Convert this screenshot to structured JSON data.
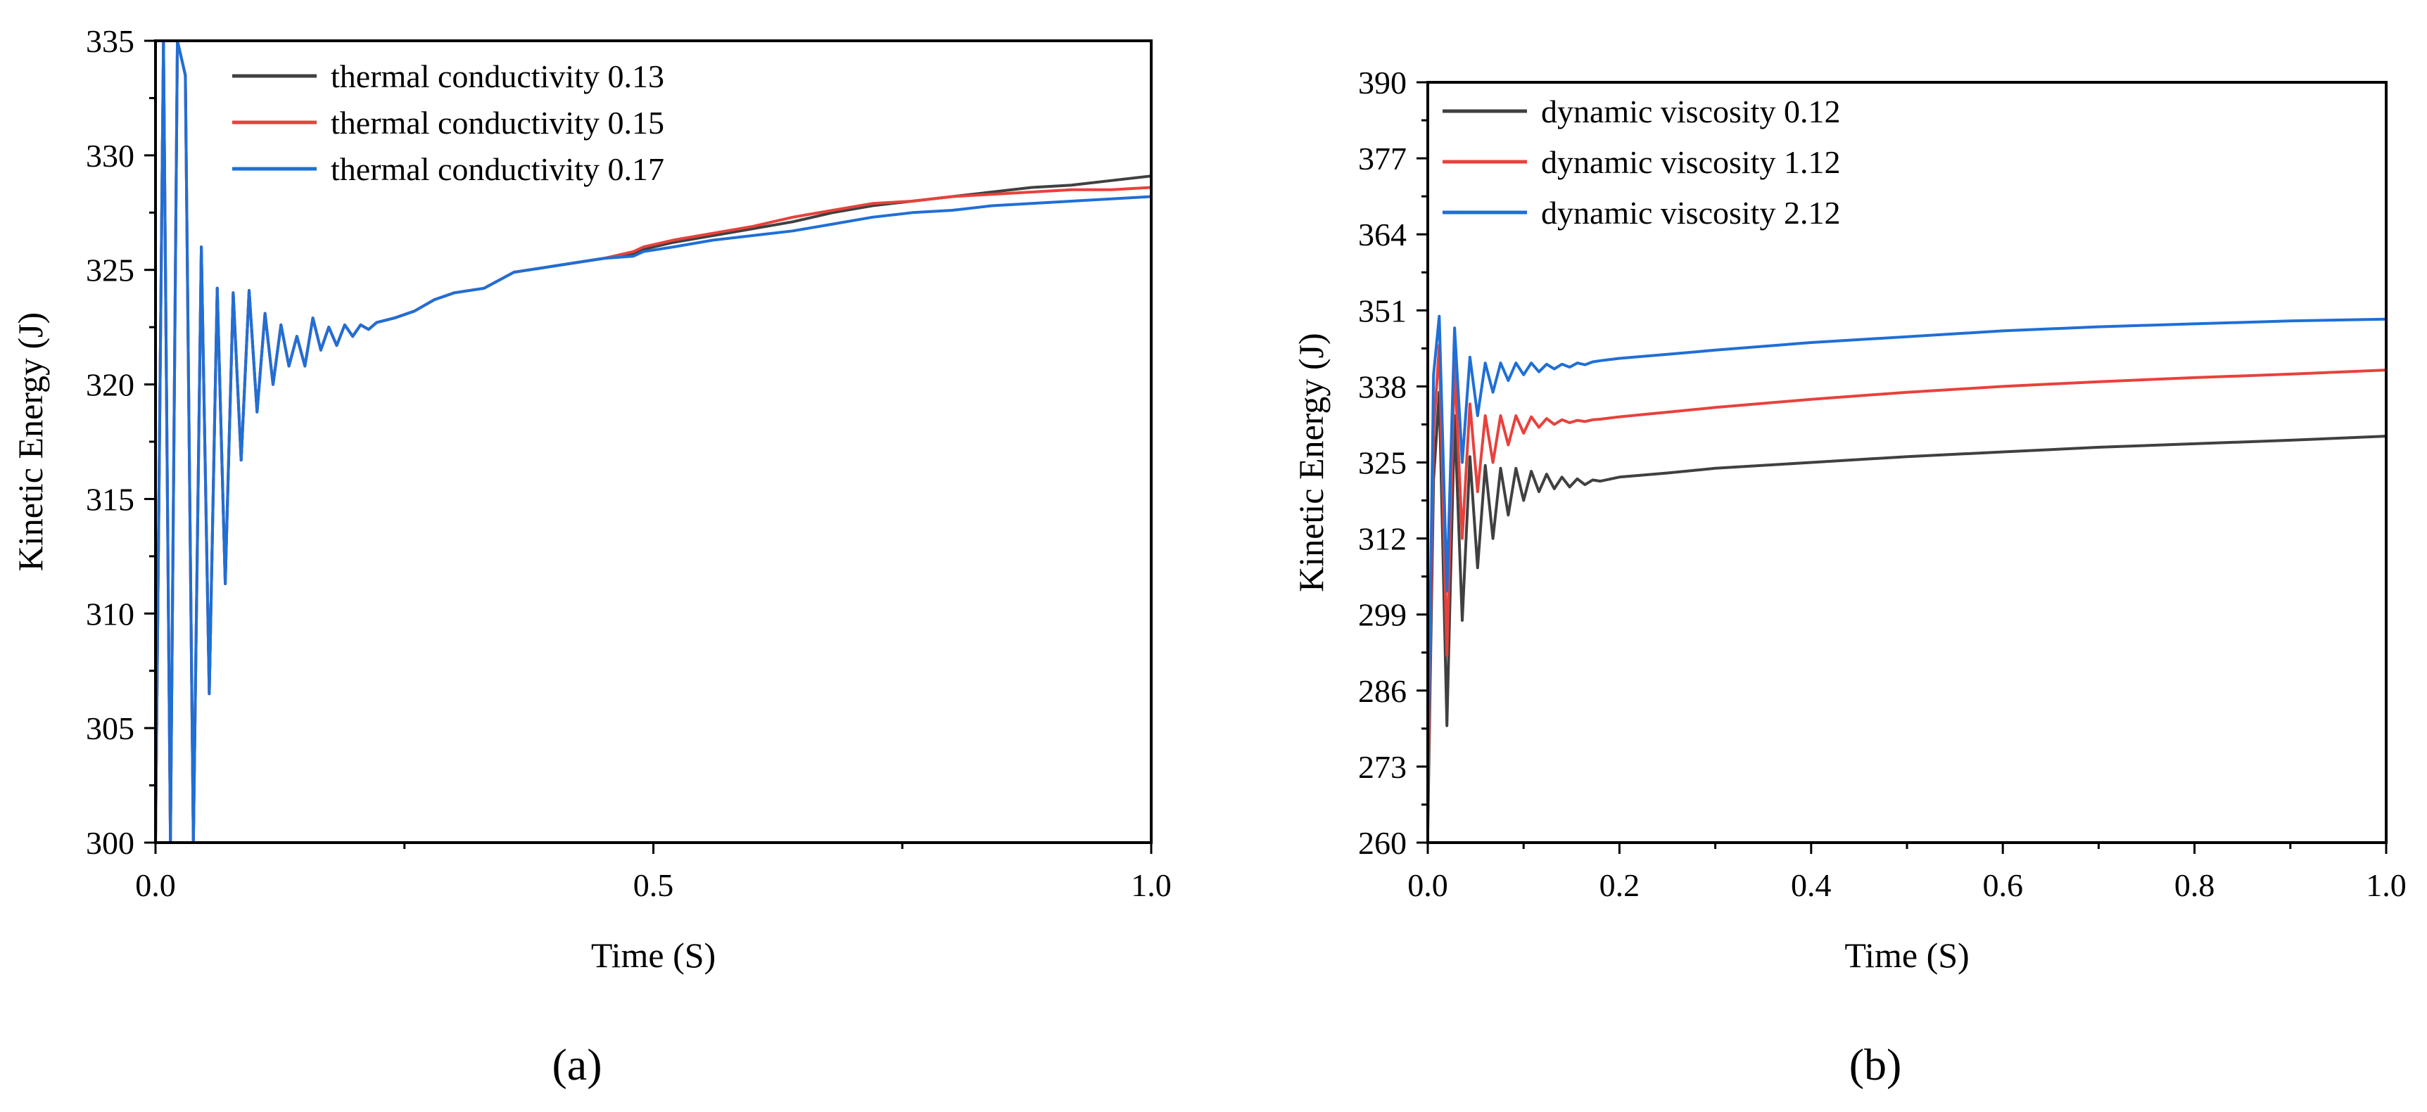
{
  "chart_data": [
    {
      "type": "line",
      "panel_label": "(a)",
      "xlabel": "Time (S)",
      "ylabel": "Kinetic Energy (J)",
      "xlim": [
        0,
        1.0
      ],
      "ylim": [
        300,
        335
      ],
      "xticks": [
        0.0,
        0.5,
        1.0
      ],
      "xtick_labels": [
        "0.0",
        "0.5",
        "1.0"
      ],
      "yticks": [
        300,
        305,
        310,
        315,
        320,
        325,
        330,
        335
      ],
      "ytick_labels": [
        "300",
        "305",
        "310",
        "315",
        "320",
        "325",
        "330",
        "335"
      ],
      "legend_position": "top-left",
      "series": [
        {
          "name": "thermal  conductivity  0.13",
          "color": "#404040",
          "x": [
            0.0,
            0.008,
            0.015,
            0.022,
            0.03,
            0.038,
            0.046,
            0.054,
            0.062,
            0.07,
            0.078,
            0.086,
            0.094,
            0.102,
            0.11,
            0.118,
            0.126,
            0.134,
            0.142,
            0.15,
            0.158,
            0.166,
            0.174,
            0.182,
            0.19,
            0.198,
            0.206,
            0.214,
            0.222,
            0.24,
            0.26,
            0.28,
            0.3,
            0.33,
            0.36,
            0.39,
            0.42,
            0.45,
            0.48,
            0.49,
            0.52,
            0.56,
            0.6,
            0.64,
            0.68,
            0.72,
            0.76,
            0.8,
            0.84,
            0.88,
            0.92,
            0.96,
            1.0
          ],
          "values": [
            300,
            336,
            300,
            336,
            333.5,
            300,
            326,
            306.5,
            324.2,
            311.3,
            324.0,
            316.7,
            324.1,
            318.8,
            323.1,
            320.0,
            322.6,
            320.8,
            322.1,
            320.8,
            322.9,
            321.5,
            322.5,
            321.7,
            322.6,
            322.1,
            322.6,
            322.4,
            322.7,
            322.9,
            323.2,
            323.7,
            324.0,
            324.2,
            324.9,
            325.1,
            325.3,
            325.5,
            325.7,
            325.9,
            326.2,
            326.5,
            326.8,
            327.1,
            327.5,
            327.8,
            328.0,
            328.2,
            328.4,
            328.6,
            328.7,
            328.9,
            329.1
          ]
        },
        {
          "name": "thermal  conductivity  0.15",
          "color": "#e8413c",
          "x": [
            0.0,
            0.008,
            0.015,
            0.022,
            0.03,
            0.038,
            0.046,
            0.054,
            0.062,
            0.07,
            0.078,
            0.086,
            0.094,
            0.102,
            0.11,
            0.118,
            0.126,
            0.134,
            0.142,
            0.15,
            0.158,
            0.166,
            0.174,
            0.182,
            0.19,
            0.198,
            0.206,
            0.214,
            0.222,
            0.24,
            0.26,
            0.28,
            0.3,
            0.33,
            0.36,
            0.39,
            0.42,
            0.45,
            0.48,
            0.49,
            0.52,
            0.56,
            0.6,
            0.64,
            0.68,
            0.72,
            0.76,
            0.8,
            0.84,
            0.88,
            0.92,
            0.96,
            1.0
          ],
          "values": [
            300,
            336,
            300,
            336,
            333.5,
            300,
            326,
            306.5,
            324.2,
            311.3,
            324.0,
            316.7,
            324.1,
            318.8,
            323.1,
            320.0,
            322.6,
            320.8,
            322.1,
            320.8,
            322.9,
            321.5,
            322.5,
            321.7,
            322.6,
            322.1,
            322.6,
            322.4,
            322.7,
            322.9,
            323.2,
            323.7,
            324.0,
            324.2,
            324.9,
            325.1,
            325.3,
            325.5,
            325.8,
            326.0,
            326.3,
            326.6,
            326.9,
            327.3,
            327.6,
            327.9,
            328.0,
            328.2,
            328.3,
            328.4,
            328.5,
            328.5,
            328.6
          ]
        },
        {
          "name": "thermal  conductivity  0.17",
          "color": "#1f6fd6",
          "x": [
            0.0,
            0.008,
            0.015,
            0.022,
            0.03,
            0.038,
            0.046,
            0.054,
            0.062,
            0.07,
            0.078,
            0.086,
            0.094,
            0.102,
            0.11,
            0.118,
            0.126,
            0.134,
            0.142,
            0.15,
            0.158,
            0.166,
            0.174,
            0.182,
            0.19,
            0.198,
            0.206,
            0.214,
            0.222,
            0.24,
            0.26,
            0.28,
            0.3,
            0.33,
            0.36,
            0.39,
            0.42,
            0.45,
            0.48,
            0.49,
            0.52,
            0.56,
            0.6,
            0.64,
            0.68,
            0.72,
            0.76,
            0.8,
            0.84,
            0.88,
            0.92,
            0.96,
            1.0
          ],
          "values": [
            300,
            336,
            300,
            336,
            333.5,
            300,
            326,
            306.5,
            324.2,
            311.3,
            324.0,
            316.7,
            324.1,
            318.8,
            323.1,
            320.0,
            322.6,
            320.8,
            322.1,
            320.8,
            322.9,
            321.5,
            322.5,
            321.7,
            322.6,
            322.1,
            322.6,
            322.4,
            322.7,
            322.9,
            323.2,
            323.7,
            324.0,
            324.2,
            324.9,
            325.1,
            325.3,
            325.5,
            325.6,
            325.8,
            326.0,
            326.3,
            326.5,
            326.7,
            327.0,
            327.3,
            327.5,
            327.6,
            327.8,
            327.9,
            328.0,
            328.1,
            328.2
          ]
        }
      ]
    },
    {
      "type": "line",
      "panel_label": "(b)",
      "xlabel": "Time (S)",
      "ylabel": "Kinetic Energy (J)",
      "xlim": [
        0,
        1.0
      ],
      "ylim": [
        260,
        390
      ],
      "xticks": [
        0.0,
        0.2,
        0.4,
        0.6,
        0.8,
        1.0
      ],
      "xtick_labels": [
        "0.0",
        "0.2",
        "0.4",
        "0.6",
        "0.8",
        "1.0"
      ],
      "yticks": [
        260,
        273,
        286,
        299,
        312,
        325,
        338,
        351,
        364,
        377,
        390
      ],
      "ytick_labels": [
        "260",
        "273",
        "286",
        "299",
        "312",
        "325",
        "338",
        "351",
        "364",
        "377",
        "390"
      ],
      "legend_position": "top-left",
      "series": [
        {
          "name": "dynamic viscosity 0.12",
          "color": "#404040",
          "x": [
            0.0,
            0.006,
            0.012,
            0.02,
            0.028,
            0.036,
            0.044,
            0.052,
            0.06,
            0.068,
            0.076,
            0.084,
            0.092,
            0.1,
            0.108,
            0.116,
            0.124,
            0.132,
            0.14,
            0.148,
            0.156,
            0.164,
            0.172,
            0.18,
            0.2,
            0.25,
            0.3,
            0.4,
            0.5,
            0.6,
            0.7,
            0.8,
            0.9,
            1.0
          ],
          "values": [
            262,
            322,
            337,
            280,
            333,
            298,
            326,
            307,
            324.5,
            312,
            324,
            316,
            324,
            318.5,
            323.5,
            320,
            323,
            320.5,
            322.5,
            320.8,
            322.2,
            321.2,
            322,
            321.8,
            322.5,
            323.2,
            324,
            325,
            326,
            326.8,
            327.6,
            328.2,
            328.8,
            329.5
          ]
        },
        {
          "name": "dynamic viscosity 1.12",
          "color": "#e8413c",
          "x": [
            0.0,
            0.006,
            0.012,
            0.02,
            0.028,
            0.036,
            0.044,
            0.052,
            0.06,
            0.068,
            0.076,
            0.084,
            0.092,
            0.1,
            0.108,
            0.116,
            0.124,
            0.132,
            0.14,
            0.148,
            0.156,
            0.164,
            0.172,
            0.18,
            0.2,
            0.25,
            0.3,
            0.4,
            0.5,
            0.6,
            0.7,
            0.8,
            0.9,
            1.0
          ],
          "values": [
            266,
            330,
            345,
            292,
            342,
            312,
            335,
            320,
            333,
            325,
            333,
            328,
            333,
            330,
            332.8,
            331,
            332.5,
            331.5,
            332.3,
            331.8,
            332.2,
            332,
            332.3,
            332.4,
            332.8,
            333.6,
            334.4,
            335.8,
            337,
            338,
            338.8,
            339.5,
            340.1,
            340.8
          ]
        },
        {
          "name": "dynamic viscosity 2.12",
          "color": "#1f6fd6",
          "x": [
            0.0,
            0.006,
            0.012,
            0.02,
            0.028,
            0.036,
            0.044,
            0.052,
            0.06,
            0.068,
            0.076,
            0.084,
            0.092,
            0.1,
            0.108,
            0.116,
            0.124,
            0.132,
            0.14,
            0.148,
            0.156,
            0.164,
            0.172,
            0.18,
            0.2,
            0.25,
            0.3,
            0.4,
            0.5,
            0.6,
            0.7,
            0.8,
            0.9,
            1.0
          ],
          "values": [
            270,
            340,
            350,
            303,
            348,
            325,
            343,
            333,
            342,
            337,
            342,
            339,
            342,
            340,
            342,
            340.5,
            341.8,
            341,
            341.8,
            341.3,
            342,
            341.7,
            342.2,
            342.4,
            342.8,
            343.5,
            344.2,
            345.5,
            346.5,
            347.5,
            348.2,
            348.7,
            349.2,
            349.5
          ]
        }
      ]
    }
  ]
}
